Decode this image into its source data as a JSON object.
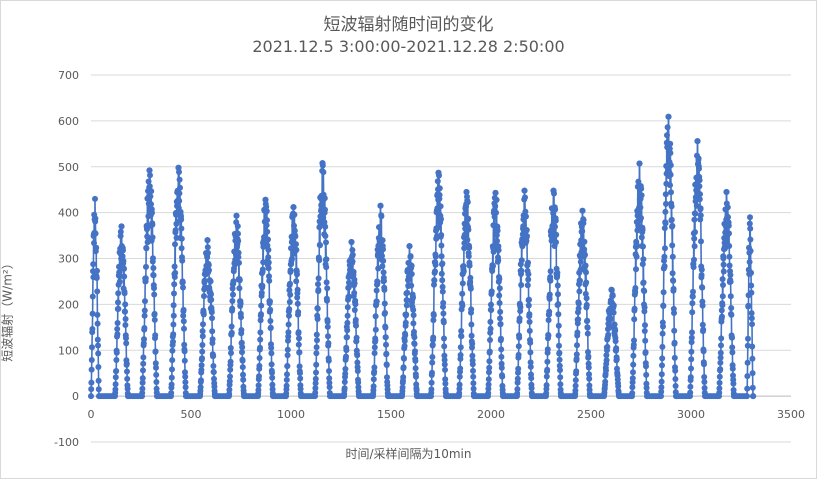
{
  "chart_data": {
    "type": "scatter",
    "title": "短波辐射随时间的变化",
    "subtitle": "2021.12.5 3:00:00-2021.12.28 2:50:00",
    "xlabel": "时间/采样间隔为10min",
    "ylabel": "短波辐射（W/m²）",
    "xlim": [
      0,
      3500
    ],
    "ylim": [
      -100,
      700
    ],
    "x_ticks": [
      0,
      500,
      1000,
      1500,
      2000,
      2500,
      3000,
      3500
    ],
    "y_ticks": [
      -100,
      0,
      100,
      200,
      300,
      400,
      500,
      600,
      700
    ],
    "grid": "horizontal",
    "legend": "none",
    "color": "#4472c4",
    "series": [
      {
        "days": [
          {
            "start": 0,
            "end": 40,
            "peak": 430
          },
          {
            "start": 120,
            "end": 185,
            "peak": 370
          },
          {
            "start": 255,
            "end": 330,
            "peak": 492
          },
          {
            "start": 400,
            "end": 475,
            "peak": 498
          },
          {
            "start": 545,
            "end": 620,
            "peak": 340
          },
          {
            "start": 690,
            "end": 765,
            "peak": 393
          },
          {
            "start": 835,
            "end": 910,
            "peak": 428
          },
          {
            "start": 975,
            "end": 1050,
            "peak": 412
          },
          {
            "start": 1120,
            "end": 1195,
            "peak": 508
          },
          {
            "start": 1265,
            "end": 1340,
            "peak": 336
          },
          {
            "start": 1410,
            "end": 1485,
            "peak": 415
          },
          {
            "start": 1555,
            "end": 1630,
            "peak": 327
          },
          {
            "start": 1700,
            "end": 1775,
            "peak": 487
          },
          {
            "start": 1840,
            "end": 1915,
            "peak": 445
          },
          {
            "start": 1985,
            "end": 2060,
            "peak": 443
          },
          {
            "start": 2130,
            "end": 2205,
            "peak": 448
          },
          {
            "start": 2275,
            "end": 2350,
            "peak": 448
          },
          {
            "start": 2420,
            "end": 2495,
            "peak": 404
          },
          {
            "start": 2565,
            "end": 2640,
            "peak": 232
          },
          {
            "start": 2705,
            "end": 2780,
            "peak": 507
          },
          {
            "start": 2850,
            "end": 2925,
            "peak": 609
          },
          {
            "start": 2995,
            "end": 3070,
            "peak": 556
          },
          {
            "start": 3140,
            "end": 3215,
            "peak": 445
          },
          {
            "start": 3280,
            "end": 3310,
            "peak": 390
          }
        ]
      }
    ]
  }
}
